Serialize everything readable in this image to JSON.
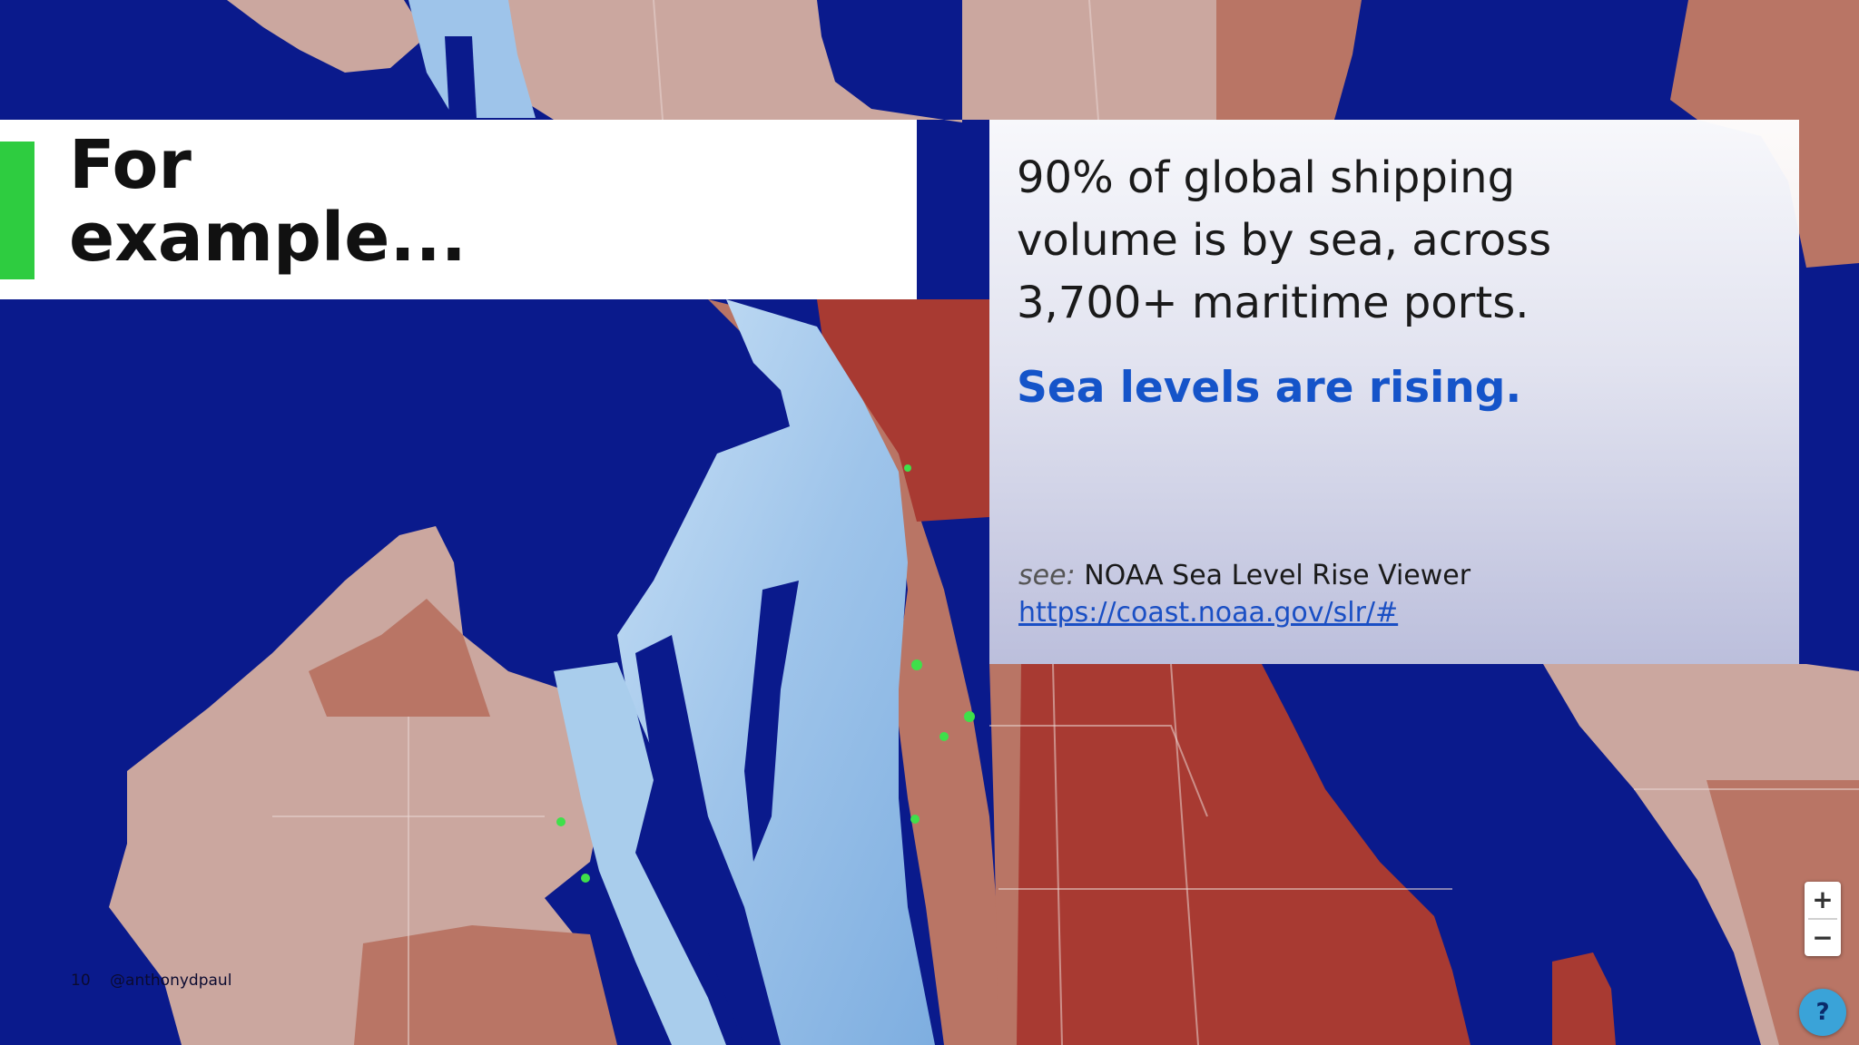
{
  "slide": {
    "title_lines": [
      "For",
      "example..."
    ],
    "accent_color": "#2ecc40"
  },
  "info": {
    "lead_lines": [
      "90% of global shipping",
      "volume is by sea, across",
      "3,700+ maritime ports."
    ],
    "highlight": "Sea levels are rising.",
    "highlight_color": "#1554c9",
    "source_prefix": "see:",
    "source_name": "NOAA Sea Level Rise Viewer",
    "source_url": "https://coast.noaa.gov/slr/#"
  },
  "footer": {
    "slide_number": "10",
    "handle": "@anthonydpaul"
  },
  "map_controls": {
    "zoom_in": "+",
    "zoom_out": "−",
    "help": "?"
  },
  "map_colors": {
    "water": "#0a1a8c",
    "flooded": "#a9cdec",
    "land_low": "#cba79f",
    "land_mid": "#b97565",
    "land_high": "#a83a32",
    "marker": "#3fe04a"
  }
}
